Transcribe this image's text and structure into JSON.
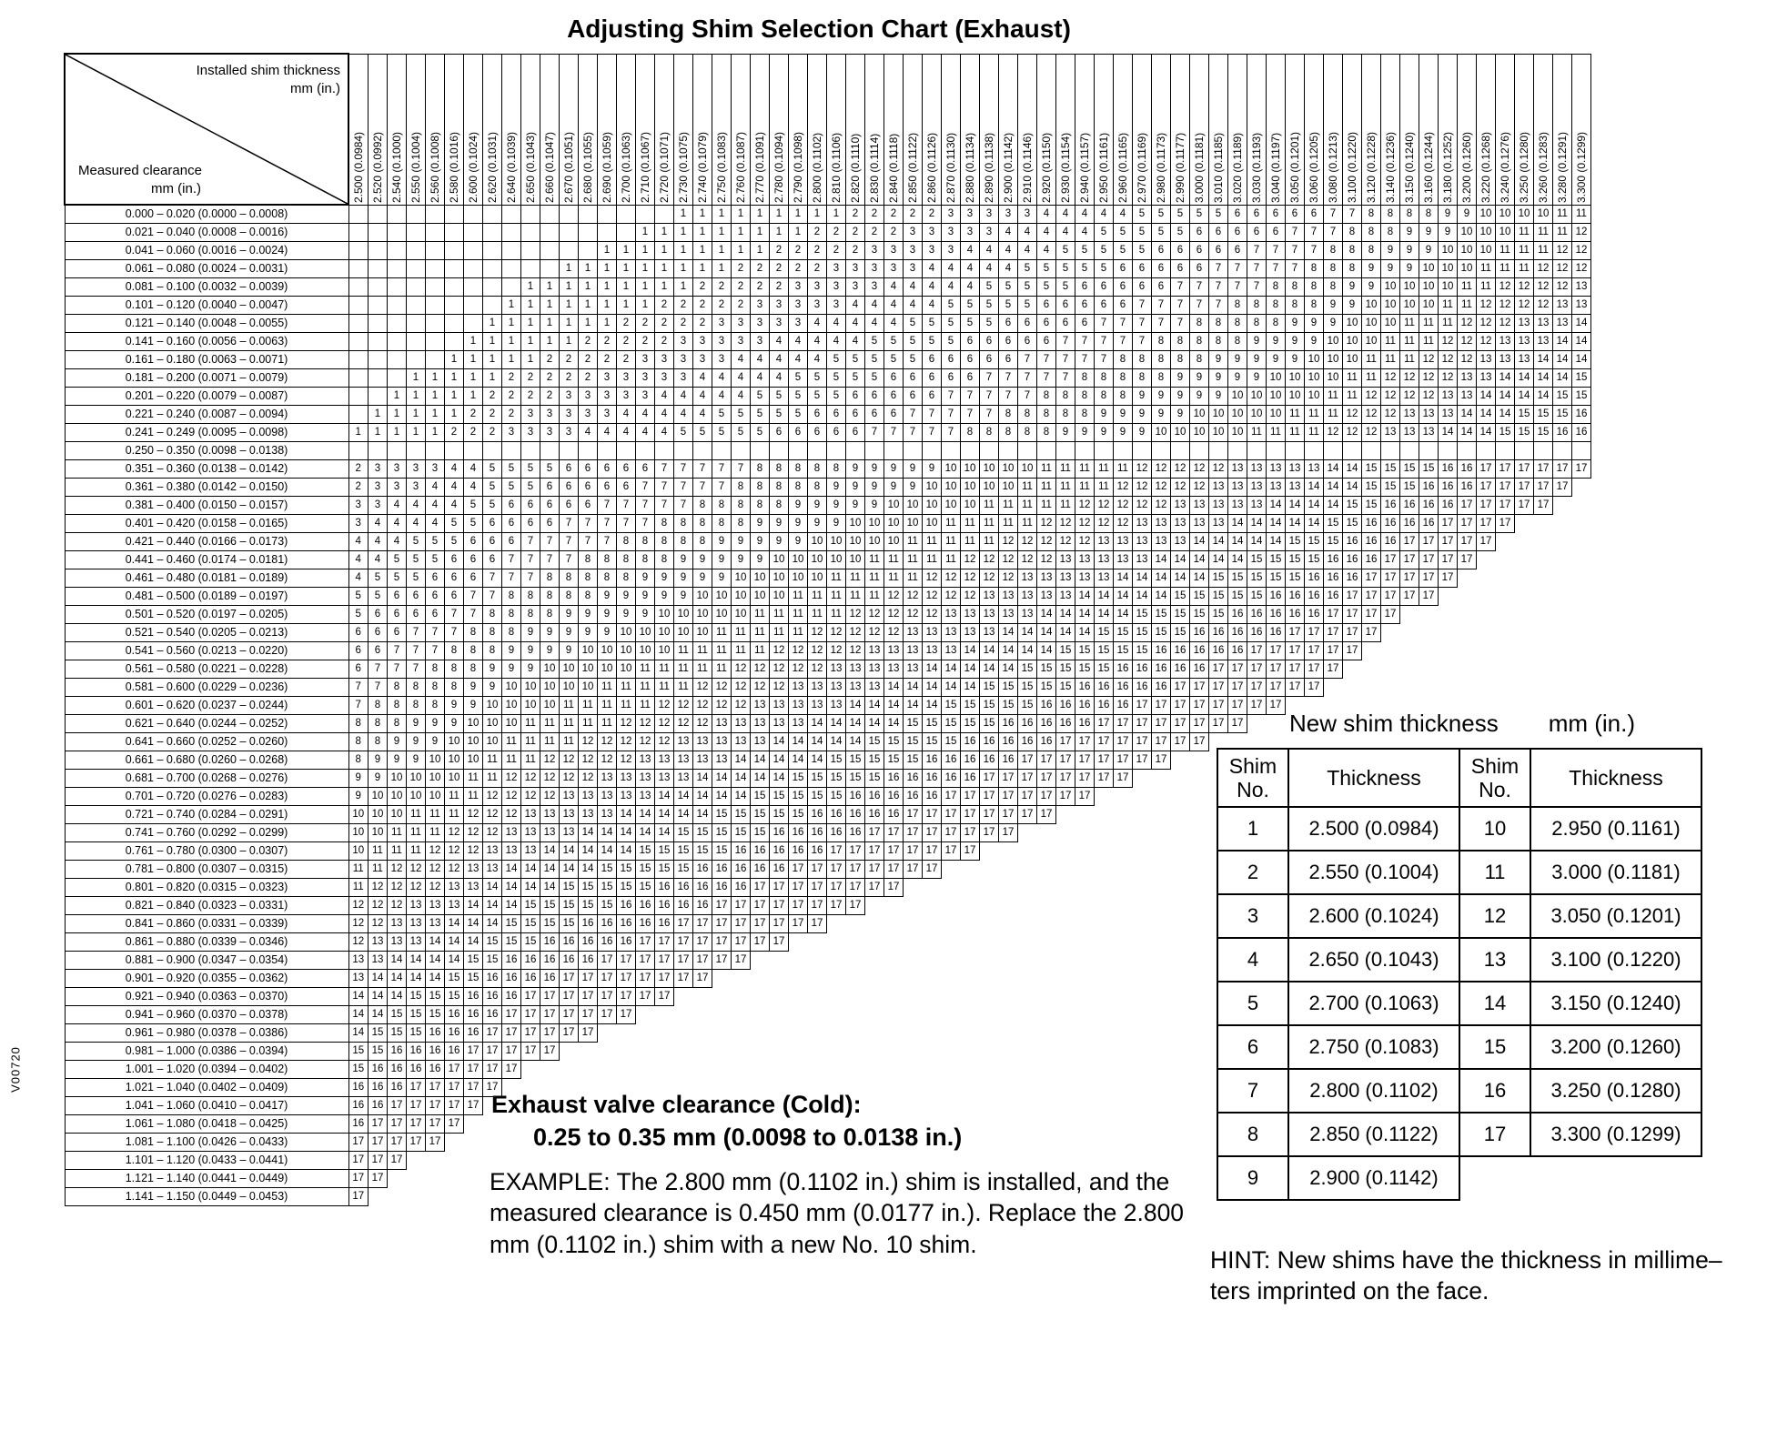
{
  "title": "Adjusting Shim Selection Chart (Exhaust)",
  "doc_code": "V00720",
  "matrix": {
    "corner": {
      "top_label": "Installed shim thickness",
      "top_unit": "mm (in.)",
      "left_label": "Measured  clearance",
      "left_unit": "mm (in.)"
    },
    "columns": [
      [
        2.5,
        "2.500 (0.0984)"
      ],
      [
        2.52,
        "2.520 (0.0992)"
      ],
      [
        2.54,
        "2.540 (0.1000)"
      ],
      [
        2.55,
        "2.550 (0.1004)"
      ],
      [
        2.56,
        "2.560 (0.1008)"
      ],
      [
        2.58,
        "2.580 (0.1016)"
      ],
      [
        2.6,
        "2.600 (0.1024)"
      ],
      [
        2.62,
        "2.620 (0.1031)"
      ],
      [
        2.64,
        "2.640 (0.1039)"
      ],
      [
        2.65,
        "2.650 (0.1043)"
      ],
      [
        2.66,
        "2.660 (0.1047)"
      ],
      [
        2.67,
        "2.670 (0.1051)"
      ],
      [
        2.68,
        "2.680 (0.1055)"
      ],
      [
        2.69,
        "2.690 (0.1059)"
      ],
      [
        2.7,
        "2.700 (0.1063)"
      ],
      [
        2.71,
        "2.710 (0.1067)"
      ],
      [
        2.72,
        "2.720 (0.1071)"
      ],
      [
        2.73,
        "2.730 (0.1075)"
      ],
      [
        2.74,
        "2.740 (0.1079)"
      ],
      [
        2.75,
        "2.750 (0.1083)"
      ],
      [
        2.76,
        "2.760 (0.1087)"
      ],
      [
        2.77,
        "2.770 (0.1091)"
      ],
      [
        2.78,
        "2.780 (0.1094)"
      ],
      [
        2.79,
        "2.790 (0.1098)"
      ],
      [
        2.8,
        "2.800 (0.1102)"
      ],
      [
        2.81,
        "2.810 (0.1106)"
      ],
      [
        2.82,
        "2.820 (0.1110)"
      ],
      [
        2.83,
        "2.830 (0.1114)"
      ],
      [
        2.84,
        "2.840 (0.1118)"
      ],
      [
        2.85,
        "2.850 (0.1122)"
      ],
      [
        2.86,
        "2.860 (0.1126)"
      ],
      [
        2.87,
        "2.870 (0.1130)"
      ],
      [
        2.88,
        "2.880 (0.1134)"
      ],
      [
        2.89,
        "2.890 (0.1138)"
      ],
      [
        2.9,
        "2.900 (0.1142)"
      ],
      [
        2.91,
        "2.910 (0.1146)"
      ],
      [
        2.92,
        "2.920 (0.1150)"
      ],
      [
        2.93,
        "2.930 (0.1154)"
      ],
      [
        2.94,
        "2.940 (0.1157)"
      ],
      [
        2.95,
        "2.950 (0.1161)"
      ],
      [
        2.96,
        "2.960 (0.1165)"
      ],
      [
        2.97,
        "2.970 (0.1169)"
      ],
      [
        2.98,
        "2.980 (0.1173)"
      ],
      [
        2.99,
        "2.990 (0.1177)"
      ],
      [
        3.0,
        "3.000 (0.1181)"
      ],
      [
        3.01,
        "3.010 (0.1185)"
      ],
      [
        3.02,
        "3.020 (0.1189)"
      ],
      [
        3.03,
        "3.030 (0.1193)"
      ],
      [
        3.04,
        "3.040 (0.1197)"
      ],
      [
        3.05,
        "3.050 (0.1201)"
      ],
      [
        3.06,
        "3.060 (0.1205)"
      ],
      [
        3.08,
        "3.080 (0.1213)"
      ],
      [
        3.1,
        "3.100 (0.1220)"
      ],
      [
        3.12,
        "3.120 (0.1228)"
      ],
      [
        3.14,
        "3.140 (0.1236)"
      ],
      [
        3.15,
        "3.150 (0.1240)"
      ],
      [
        3.16,
        "3.160 (0.1244)"
      ],
      [
        3.18,
        "3.180 (0.1252)"
      ],
      [
        3.2,
        "3.200 (0.1260)"
      ],
      [
        3.22,
        "3.220 (0.1268)"
      ],
      [
        3.24,
        "3.240 (0.1276)"
      ],
      [
        3.25,
        "3.250 (0.1280)"
      ],
      [
        3.26,
        "3.260 (0.1283)"
      ],
      [
        3.28,
        "3.280 (0.1291)"
      ],
      [
        3.3,
        "3.300 (0.1299)"
      ]
    ],
    "rows": [
      [
        0.0,
        0.02,
        "0.000 – 0.020 (0.0000 – 0.0008)"
      ],
      [
        0.021,
        0.04,
        "0.021 – 0.040 (0.0008 – 0.0016)"
      ],
      [
        0.041,
        0.06,
        "0.041 – 0.060 (0.0016 – 0.0024)"
      ],
      [
        0.061,
        0.08,
        "0.061 – 0.080 (0.0024 – 0.0031)"
      ],
      [
        0.081,
        0.1,
        "0.081 – 0.100 (0.0032 – 0.0039)"
      ],
      [
        0.101,
        0.12,
        "0.101 – 0.120 (0.0040 – 0.0047)"
      ],
      [
        0.121,
        0.14,
        "0.121 – 0.140 (0.0048 – 0.0055)"
      ],
      [
        0.141,
        0.16,
        "0.141 – 0.160 (0.0056 – 0.0063)"
      ],
      [
        0.161,
        0.18,
        "0.161 – 0.180 (0.0063 – 0.0071)"
      ],
      [
        0.181,
        0.2,
        "0.181 – 0.200 (0.0071 – 0.0079)"
      ],
      [
        0.201,
        0.22,
        "0.201 – 0.220 (0.0079 – 0.0087)"
      ],
      [
        0.221,
        0.24,
        "0.221 – 0.240 (0.0087 – 0.0094)"
      ],
      [
        0.241,
        0.249,
        "0.241 – 0.249 (0.0095 – 0.0098)"
      ],
      [
        0.25,
        0.35,
        "0.250 – 0.350 (0.0098 – 0.0138)"
      ],
      [
        0.351,
        0.36,
        "0.351 – 0.360 (0.0138 – 0.0142)"
      ],
      [
        0.361,
        0.38,
        "0.361 – 0.380 (0.0142 – 0.0150)"
      ],
      [
        0.381,
        0.4,
        "0.381 – 0.400 (0.0150 – 0.0157)"
      ],
      [
        0.401,
        0.42,
        "0.401 – 0.420 (0.0158 – 0.0165)"
      ],
      [
        0.421,
        0.44,
        "0.421 – 0.440 (0.0166 – 0.0173)"
      ],
      [
        0.441,
        0.46,
        "0.441 – 0.460 (0.0174 – 0.0181)"
      ],
      [
        0.461,
        0.48,
        "0.461 – 0.480 (0.0181 – 0.0189)"
      ],
      [
        0.481,
        0.5,
        "0.481 – 0.500 (0.0189 – 0.0197)"
      ],
      [
        0.501,
        0.52,
        "0.501 – 0.520 (0.0197 – 0.0205)"
      ],
      [
        0.521,
        0.54,
        "0.521 – 0.540 (0.0205 – 0.0213)"
      ],
      [
        0.541,
        0.56,
        "0.541 – 0.560 (0.0213 – 0.0220)"
      ],
      [
        0.561,
        0.58,
        "0.561 – 0.580 (0.0221 – 0.0228)"
      ],
      [
        0.581,
        0.6,
        "0.581 – 0.600 (0.0229 – 0.0236)"
      ],
      [
        0.601,
        0.62,
        "0.601 – 0.620 (0.0237 – 0.0244)"
      ],
      [
        0.621,
        0.64,
        "0.621 – 0.640 (0.0244 – 0.0252)"
      ],
      [
        0.641,
        0.66,
        "0.641 – 0.660 (0.0252 – 0.0260)"
      ],
      [
        0.661,
        0.68,
        "0.661 – 0.680 (0.0260 – 0.0268)"
      ],
      [
        0.681,
        0.7,
        "0.681 – 0.700 (0.0268 – 0.0276)"
      ],
      [
        0.701,
        0.72,
        "0.701 – 0.720 (0.0276 – 0.0283)"
      ],
      [
        0.721,
        0.74,
        "0.721 – 0.740 (0.0284 – 0.0291)"
      ],
      [
        0.741,
        0.76,
        "0.741 – 0.760 (0.0292 – 0.0299)"
      ],
      [
        0.761,
        0.78,
        "0.761 – 0.780 (0.0300 – 0.0307)"
      ],
      [
        0.781,
        0.8,
        "0.781 – 0.800 (0.0307 – 0.0315)"
      ],
      [
        0.801,
        0.82,
        "0.801 – 0.820 (0.0315 – 0.0323)"
      ],
      [
        0.821,
        0.84,
        "0.821 – 0.840 (0.0323 – 0.0331)"
      ],
      [
        0.841,
        0.86,
        "0.841 – 0.860 (0.0331 – 0.0339)"
      ],
      [
        0.861,
        0.88,
        "0.861 – 0.880 (0.0339 – 0.0346)"
      ],
      [
        0.881,
        0.9,
        "0.881 – 0.900 (0.0347 – 0.0354)"
      ],
      [
        0.901,
        0.92,
        "0.901 – 0.920 (0.0355 – 0.0362)"
      ],
      [
        0.921,
        0.94,
        "0.921 – 0.940 (0.0363 – 0.0370)"
      ],
      [
        0.941,
        0.96,
        "0.941 – 0.960 (0.0370 – 0.0378)"
      ],
      [
        0.961,
        0.98,
        "0.961 – 0.980 (0.0378 – 0.0386)"
      ],
      [
        0.981,
        1.0,
        "0.981 – 1.000 (0.0386 – 0.0394)"
      ],
      [
        1.001,
        1.02,
        "1.001 – 1.020 (0.0394 – 0.0402)"
      ],
      [
        1.021,
        1.04,
        "1.021 – 1.040 (0.0402 – 0.0409)"
      ],
      [
        1.041,
        1.06,
        "1.041 – 1.060 (0.0410 – 0.0417)"
      ],
      [
        1.061,
        1.08,
        "1.061 – 1.080 (0.0418 – 0.0425)"
      ],
      [
        1.081,
        1.1,
        "1.081 – 1.100 (0.0426 – 0.0433)"
      ],
      [
        1.101,
        1.12,
        "1.101 – 1.120 (0.0433 – 0.0441)"
      ],
      [
        1.121,
        1.14,
        "1.121 – 1.140 (0.0441 – 0.0449)"
      ],
      [
        1.141,
        1.15,
        "1.141 – 1.150 (0.0449 – 0.0453)"
      ]
    ],
    "rule": {
      "comment": "cell shim No. = nearest shim to installed + mid(clearance) - 0.30 mm; blank outside cutoffs; spec row blank",
      "shim_min_mm": 2.5,
      "shim_step_mm": 0.05,
      "shim_count": 17,
      "target_clearance_mm": 0.3,
      "min_target_mm": 2.4395,
      "max_target_mm": 3.3555,
      "in_spec_row_index": 13
    }
  },
  "shim_table": {
    "title": "New shim thickness",
    "unit": "mm (in.)",
    "col_headers": [
      "Shim No.",
      "Thickness",
      "Shim No.",
      "Thickness"
    ],
    "rows": [
      [
        "1",
        "2.500 (0.0984)",
        "10",
        "2.950 (0.1161)"
      ],
      [
        "2",
        "2.550 (0.1004)",
        "11",
        "3.000 (0.1181)"
      ],
      [
        "3",
        "2.600 (0.1024)",
        "12",
        "3.050 (0.1201)"
      ],
      [
        "4",
        "2.650 (0.1043)",
        "13",
        "3.100 (0.1220)"
      ],
      [
        "5",
        "2.700 (0.1063)",
        "14",
        "3.150 (0.1240)"
      ],
      [
        "6",
        "2.750 (0.1083)",
        "15",
        "3.200 (0.1260)"
      ],
      [
        "7",
        "2.800 (0.1102)",
        "16",
        "3.250 (0.1280)"
      ],
      [
        "8",
        "2.850 (0.1122)",
        "17",
        "3.300 (0.1299)"
      ],
      [
        "9",
        "2.900 (0.1142)",
        "",
        ""
      ]
    ]
  },
  "clearance_spec": {
    "line1": "Exhaust valve clearance (Cold):",
    "line2": "0.25 to 0.35 mm (0.0098 to 0.0138 in.)"
  },
  "example": {
    "prefix": "EXAMPLE:",
    "text": "  The 2.800 mm (0.1102 in.) shim is installed, and the measured clearance is 0.450 mm (0.0177 in.). Replace the 2.800 mm (0.1102 in.) shim with a new No. 10 shim."
  },
  "hint": {
    "line1": "HINT:  New shims have the thickness in millime–",
    "line2": "ters imprinted on the face."
  }
}
